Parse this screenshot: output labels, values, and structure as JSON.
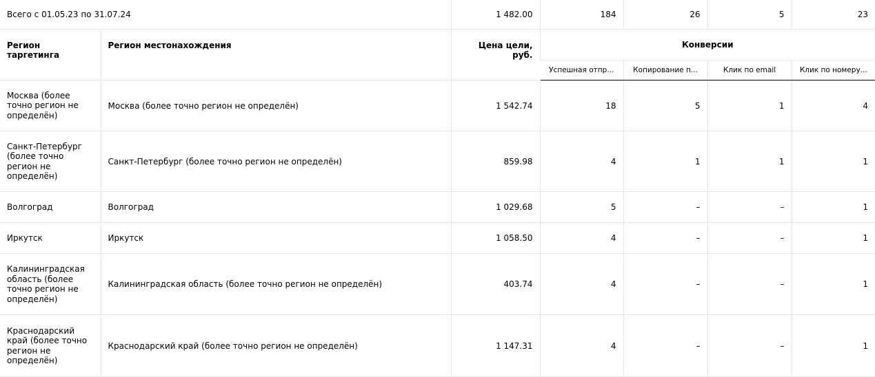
{
  "totals": {
    "label": "Всего с 01.05.23 по 31.07.24",
    "goal_price": "1 482.00",
    "conv": [
      "184",
      "26",
      "5",
      "23"
    ]
  },
  "headers": {
    "target_region": "Регион таргетинга",
    "location_region": "Регион местонахождения",
    "goal_price": "Цена цели, руб.",
    "conversions": "Конверсии",
    "conv_cols": [
      "Успешная отпр...",
      "Копирование п...",
      "Клик по email",
      "Клик по номеру..."
    ]
  },
  "rows": [
    {
      "target": "Москва (более точно регион не определён)",
      "location": "Москва (более точно регион не определён)",
      "price": "1 542.74",
      "conv": [
        "18",
        "5",
        "1",
        "4"
      ]
    },
    {
      "target": "Санкт-Петербург (более точно регион не определён)",
      "location": "Санкт-Петербург (более точно регион не определён)",
      "price": "859.98",
      "conv": [
        "4",
        "1",
        "1",
        "1"
      ]
    },
    {
      "target": "Волгоград",
      "location": "Волгоград",
      "price": "1 029.68",
      "conv": [
        "5",
        "–",
        "–",
        "1"
      ]
    },
    {
      "target": "Иркутск",
      "location": "Иркутск",
      "price": "1 058.50",
      "conv": [
        "4",
        "–",
        "–",
        "1"
      ]
    },
    {
      "target": "Калининградская область (более точно регион не определён)",
      "location": "Калининградская область (более точно регион не определён)",
      "price": "403.74",
      "conv": [
        "4",
        "–",
        "–",
        "1"
      ]
    },
    {
      "target": "Краснодарский край (более точно регион не определён)",
      "location": "Краснодарский край (более точно регион не определён)",
      "price": "1 147.31",
      "conv": [
        "4",
        "–",
        "–",
        "1"
      ]
    }
  ]
}
